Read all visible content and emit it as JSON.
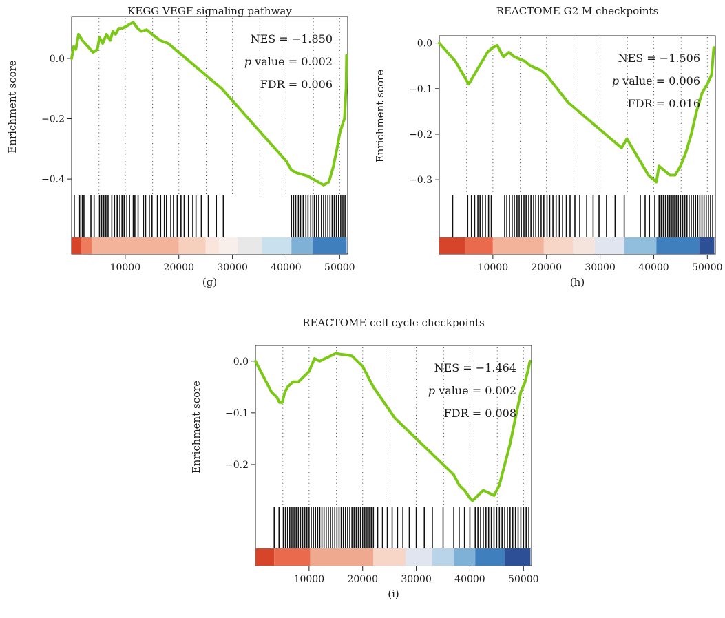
{
  "figure": {
    "panels": [
      {
        "id": "g",
        "caption": "(g)"
      },
      {
        "id": "h",
        "caption": "(h)"
      },
      {
        "id": "i",
        "caption": "(i)"
      }
    ]
  },
  "chart_data": [
    {
      "type": "line",
      "panel": "g",
      "title": "KEGG VEGF signaling pathway",
      "ylabel": "Enrichment score",
      "xlabel": "",
      "caption": "(g)",
      "stats": {
        "nes": "NES = −1.850",
        "p_italic": "p",
        "p_rest": " value = 0.002",
        "fdr": "FDR = 0.006"
      },
      "xlim": [
        0,
        51500
      ],
      "ylim": [
        -0.45,
        0.13
      ],
      "x_ticks": [
        10000,
        20000,
        30000,
        40000,
        50000
      ],
      "y_ticks": [
        0.0,
        -0.2,
        -0.4
      ],
      "y_tick_labels": [
        "0.0",
        "−0.2",
        "−0.4"
      ],
      "line_color": "#7cc817",
      "series": [
        {
          "x": [
            0,
            400,
            800,
            1300,
            2000,
            3000,
            4000,
            4800,
            5200,
            5800,
            6500,
            7200,
            7700,
            8200,
            8800,
            9500,
            10500,
            11500,
            12300,
            13000,
            14000,
            15000,
            16500,
            18000,
            20000,
            22000,
            24000,
            26000,
            28000,
            30000,
            32000,
            34000,
            36000,
            38000,
            40000,
            41000,
            42000,
            43000,
            44000,
            45000,
            46000,
            47000,
            48000,
            48800,
            49500,
            50000,
            50500,
            50900,
            51200,
            51300
          ],
          "y": [
            0.0,
            0.04,
            0.03,
            0.08,
            0.06,
            0.04,
            0.02,
            0.03,
            0.07,
            0.05,
            0.08,
            0.06,
            0.09,
            0.08,
            0.1,
            0.1,
            0.11,
            0.12,
            0.1,
            0.09,
            0.095,
            0.08,
            0.06,
            0.05,
            0.02,
            -0.01,
            -0.04,
            -0.07,
            -0.1,
            -0.14,
            -0.18,
            -0.22,
            -0.26,
            -0.3,
            -0.34,
            -0.37,
            -0.38,
            -0.385,
            -0.39,
            -0.4,
            -0.41,
            -0.42,
            -0.41,
            -0.36,
            -0.3,
            -0.25,
            -0.22,
            -0.2,
            -0.1,
            0.01
          ]
        }
      ],
      "hit_positions": [
        500,
        1500,
        2000,
        2300,
        3600,
        4200,
        5200,
        5600,
        6000,
        6400,
        6800,
        7500,
        8000,
        8500,
        9000,
        9400,
        9800,
        10300,
        10800,
        11500,
        11800,
        12400,
        13400,
        13800,
        14500,
        15000,
        16000,
        16600,
        17300,
        17700,
        18500,
        19000,
        19700,
        20400,
        21000,
        21800,
        22600,
        23200,
        24200,
        25500,
        27000,
        28300,
        41000,
        41400,
        41800,
        42300,
        42700,
        43200,
        43700,
        44100,
        44600,
        45000,
        45300,
        45700,
        46100,
        46600,
        47000,
        47400,
        47800,
        48200,
        48600,
        49000,
        49400,
        49800,
        50200,
        50600,
        51000
      ],
      "color_bar": [
        {
          "start": 0,
          "end": 1800,
          "color": "#d6452a"
        },
        {
          "start": 1800,
          "end": 3800,
          "color": "#ee7b5c"
        },
        {
          "start": 3800,
          "end": 20000,
          "color": "#f2b39a"
        },
        {
          "start": 20000,
          "end": 25000,
          "color": "#f7cfbd"
        },
        {
          "start": 25000,
          "end": 27500,
          "color": "#fae5dc"
        },
        {
          "start": 27500,
          "end": 31000,
          "color": "#f8efea"
        },
        {
          "start": 31000,
          "end": 35500,
          "color": "#e8e8e8"
        },
        {
          "start": 35500,
          "end": 41000,
          "color": "#c9e1ee"
        },
        {
          "start": 41000,
          "end": 45000,
          "color": "#7fb0d6"
        },
        {
          "start": 45000,
          "end": 51300,
          "color": "#3f7fbd"
        }
      ]
    },
    {
      "type": "line",
      "panel": "h",
      "title": "REACTOME G2 M checkpoints",
      "ylabel": "Enrichment score",
      "xlabel": "",
      "caption": "(h)",
      "stats": {
        "nes": "NES = −1.506",
        "p_italic": "p",
        "p_rest": " value = 0.006",
        "fdr": "FDR = 0.016"
      },
      "xlim": [
        0,
        51500
      ],
      "ylim": [
        -0.33,
        0.01
      ],
      "x_ticks": [
        10000,
        20000,
        30000,
        40000,
        50000
      ],
      "y_ticks": [
        0.0,
        -0.1,
        -0.2,
        -0.3
      ],
      "y_tick_labels": [
        "0.0",
        "−0.1",
        "−0.2",
        "−0.3"
      ],
      "line_color": "#7cc817",
      "series": [
        {
          "x": [
            0,
            1500,
            3000,
            4000,
            5000,
            5500,
            6000,
            7000,
            8000,
            9000,
            10000,
            10800,
            11500,
            12000,
            13000,
            14000,
            15000,
            16000,
            17000,
            18000,
            19000,
            20000,
            22000,
            24000,
            26000,
            28000,
            29000,
            30000,
            31000,
            32000,
            33000,
            34000,
            35000,
            36000,
            37000,
            38000,
            39000,
            40000,
            40500,
            41000,
            42000,
            43000,
            44000,
            45000,
            46000,
            47000,
            48000,
            49000,
            50000,
            50800,
            51200
          ],
          "y": [
            0.0,
            -0.02,
            -0.04,
            -0.06,
            -0.08,
            -0.09,
            -0.08,
            -0.06,
            -0.04,
            -0.02,
            -0.01,
            -0.005,
            -0.02,
            -0.03,
            -0.02,
            -0.03,
            -0.035,
            -0.04,
            -0.05,
            -0.055,
            -0.06,
            -0.07,
            -0.1,
            -0.13,
            -0.15,
            -0.17,
            -0.18,
            -0.19,
            -0.2,
            -0.21,
            -0.22,
            -0.23,
            -0.21,
            -0.23,
            -0.25,
            -0.27,
            -0.29,
            -0.3,
            -0.305,
            -0.27,
            -0.28,
            -0.29,
            -0.29,
            -0.27,
            -0.24,
            -0.2,
            -0.15,
            -0.11,
            -0.09,
            -0.07,
            -0.01
          ]
        }
      ],
      "hit_positions": [
        2500,
        5300,
        6000,
        6600,
        7200,
        7600,
        8100,
        8600,
        9200,
        9700,
        12200,
        12600,
        13100,
        13600,
        14000,
        14500,
        14900,
        15300,
        15800,
        16200,
        16700,
        17100,
        17600,
        18000,
        18500,
        19000,
        19500,
        20100,
        20600,
        21200,
        21800,
        22400,
        23000,
        23700,
        24400,
        25300,
        26200,
        27500,
        28700,
        29800,
        31200,
        32800,
        34500,
        37500,
        38400,
        39200,
        40200,
        41000,
        41400,
        41800,
        42200,
        42600,
        43000,
        43400,
        43800,
        44200,
        44600,
        45000,
        45400,
        45800,
        46200,
        46600,
        47000,
        47400,
        47800,
        48200,
        48600,
        49000,
        49400,
        49800,
        50200,
        50600,
        51000
      ],
      "color_bar": [
        {
          "start": 0,
          "end": 4800,
          "color": "#d6452a"
        },
        {
          "start": 4800,
          "end": 10000,
          "color": "#ea6a4d"
        },
        {
          "start": 10000,
          "end": 19500,
          "color": "#f2b39a"
        },
        {
          "start": 19500,
          "end": 25000,
          "color": "#f7d6c8"
        },
        {
          "start": 25000,
          "end": 29000,
          "color": "#f5e4dd"
        },
        {
          "start": 29000,
          "end": 34500,
          "color": "#e1e5ef"
        },
        {
          "start": 34500,
          "end": 40500,
          "color": "#92bedd"
        },
        {
          "start": 40500,
          "end": 48500,
          "color": "#3f7fbd"
        },
        {
          "start": 48500,
          "end": 51300,
          "color": "#2c4f96"
        }
      ]
    },
    {
      "type": "line",
      "panel": "i",
      "title": "REACTOME cell cycle checkpoints",
      "ylabel": "Enrichment score",
      "xlabel": "",
      "caption": "(i)",
      "stats": {
        "nes": "NES = −1.464",
        "p_italic": "p",
        "p_rest": " value = 0.002",
        "fdr": "FDR = 0.008"
      },
      "xlim": [
        0,
        51500
      ],
      "ylim": [
        -0.28,
        0.025
      ],
      "x_ticks": [
        10000,
        20000,
        30000,
        40000,
        50000
      ],
      "y_ticks": [
        0.0,
        -0.1,
        -0.2
      ],
      "y_tick_labels": [
        "0.0",
        "−0.1",
        "−0.2"
      ],
      "line_color": "#7cc817",
      "series": [
        {
          "x": [
            0,
            1000,
            2000,
            3000,
            4000,
            4500,
            5000,
            5500,
            6000,
            7000,
            8000,
            9000,
            10000,
            11000,
            12000,
            13000,
            14000,
            15000,
            16000,
            17000,
            18000,
            19000,
            20000,
            22000,
            24000,
            26000,
            28000,
            30000,
            32000,
            34000,
            36000,
            37000,
            38000,
            39000,
            40000,
            40500,
            41500,
            42500,
            43500,
            44500,
            45500,
            46500,
            47500,
            48500,
            49500,
            50300,
            50800,
            51200
          ],
          "y": [
            0.0,
            -0.02,
            -0.04,
            -0.06,
            -0.07,
            -0.08,
            -0.08,
            -0.06,
            -0.05,
            -0.04,
            -0.04,
            -0.03,
            -0.02,
            0.005,
            0.0,
            0.005,
            0.01,
            0.015,
            0.013,
            0.012,
            0.01,
            0.0,
            -0.01,
            -0.05,
            -0.08,
            -0.11,
            -0.13,
            -0.15,
            -0.17,
            -0.19,
            -0.21,
            -0.22,
            -0.24,
            -0.25,
            -0.265,
            -0.27,
            -0.26,
            -0.25,
            -0.255,
            -0.26,
            -0.24,
            -0.2,
            -0.16,
            -0.11,
            -0.06,
            -0.04,
            -0.02,
            0.0
          ]
        }
      ],
      "hit_positions": [
        3500,
        4400,
        5200,
        5600,
        6000,
        6400,
        6800,
        7200,
        7600,
        8000,
        8400,
        8800,
        9200,
        9600,
        10000,
        10400,
        10800,
        11200,
        11600,
        12000,
        12400,
        12800,
        13200,
        13600,
        14000,
        14400,
        14800,
        15200,
        15600,
        16000,
        16400,
        16800,
        17200,
        17600,
        18000,
        18400,
        18800,
        19200,
        19600,
        20000,
        20400,
        20800,
        21200,
        21600,
        22000,
        22800,
        23700,
        24600,
        25500,
        26500,
        27500,
        28700,
        30000,
        31500,
        33000,
        35000,
        37000,
        38000,
        39000,
        40000,
        41000,
        41500,
        42000,
        42500,
        43000,
        43500,
        44000,
        44500,
        45000,
        45500,
        46000,
        46500,
        47000,
        47500,
        48000,
        48500,
        49000,
        49500,
        50000,
        50500,
        51000
      ],
      "color_bar": [
        {
          "start": 0,
          "end": 3500,
          "color": "#d6452a"
        },
        {
          "start": 3500,
          "end": 10200,
          "color": "#ea6a4d"
        },
        {
          "start": 10200,
          "end": 22000,
          "color": "#eea98f"
        },
        {
          "start": 22000,
          "end": 28000,
          "color": "#f7d6c8"
        },
        {
          "start": 28000,
          "end": 33000,
          "color": "#e1e5ef"
        },
        {
          "start": 33000,
          "end": 37000,
          "color": "#b9d3e8"
        },
        {
          "start": 37000,
          "end": 41000,
          "color": "#7fb0d6"
        },
        {
          "start": 41000,
          "end": 46500,
          "color": "#3f7fbd"
        },
        {
          "start": 46500,
          "end": 51300,
          "color": "#2c4f96"
        }
      ]
    }
  ]
}
